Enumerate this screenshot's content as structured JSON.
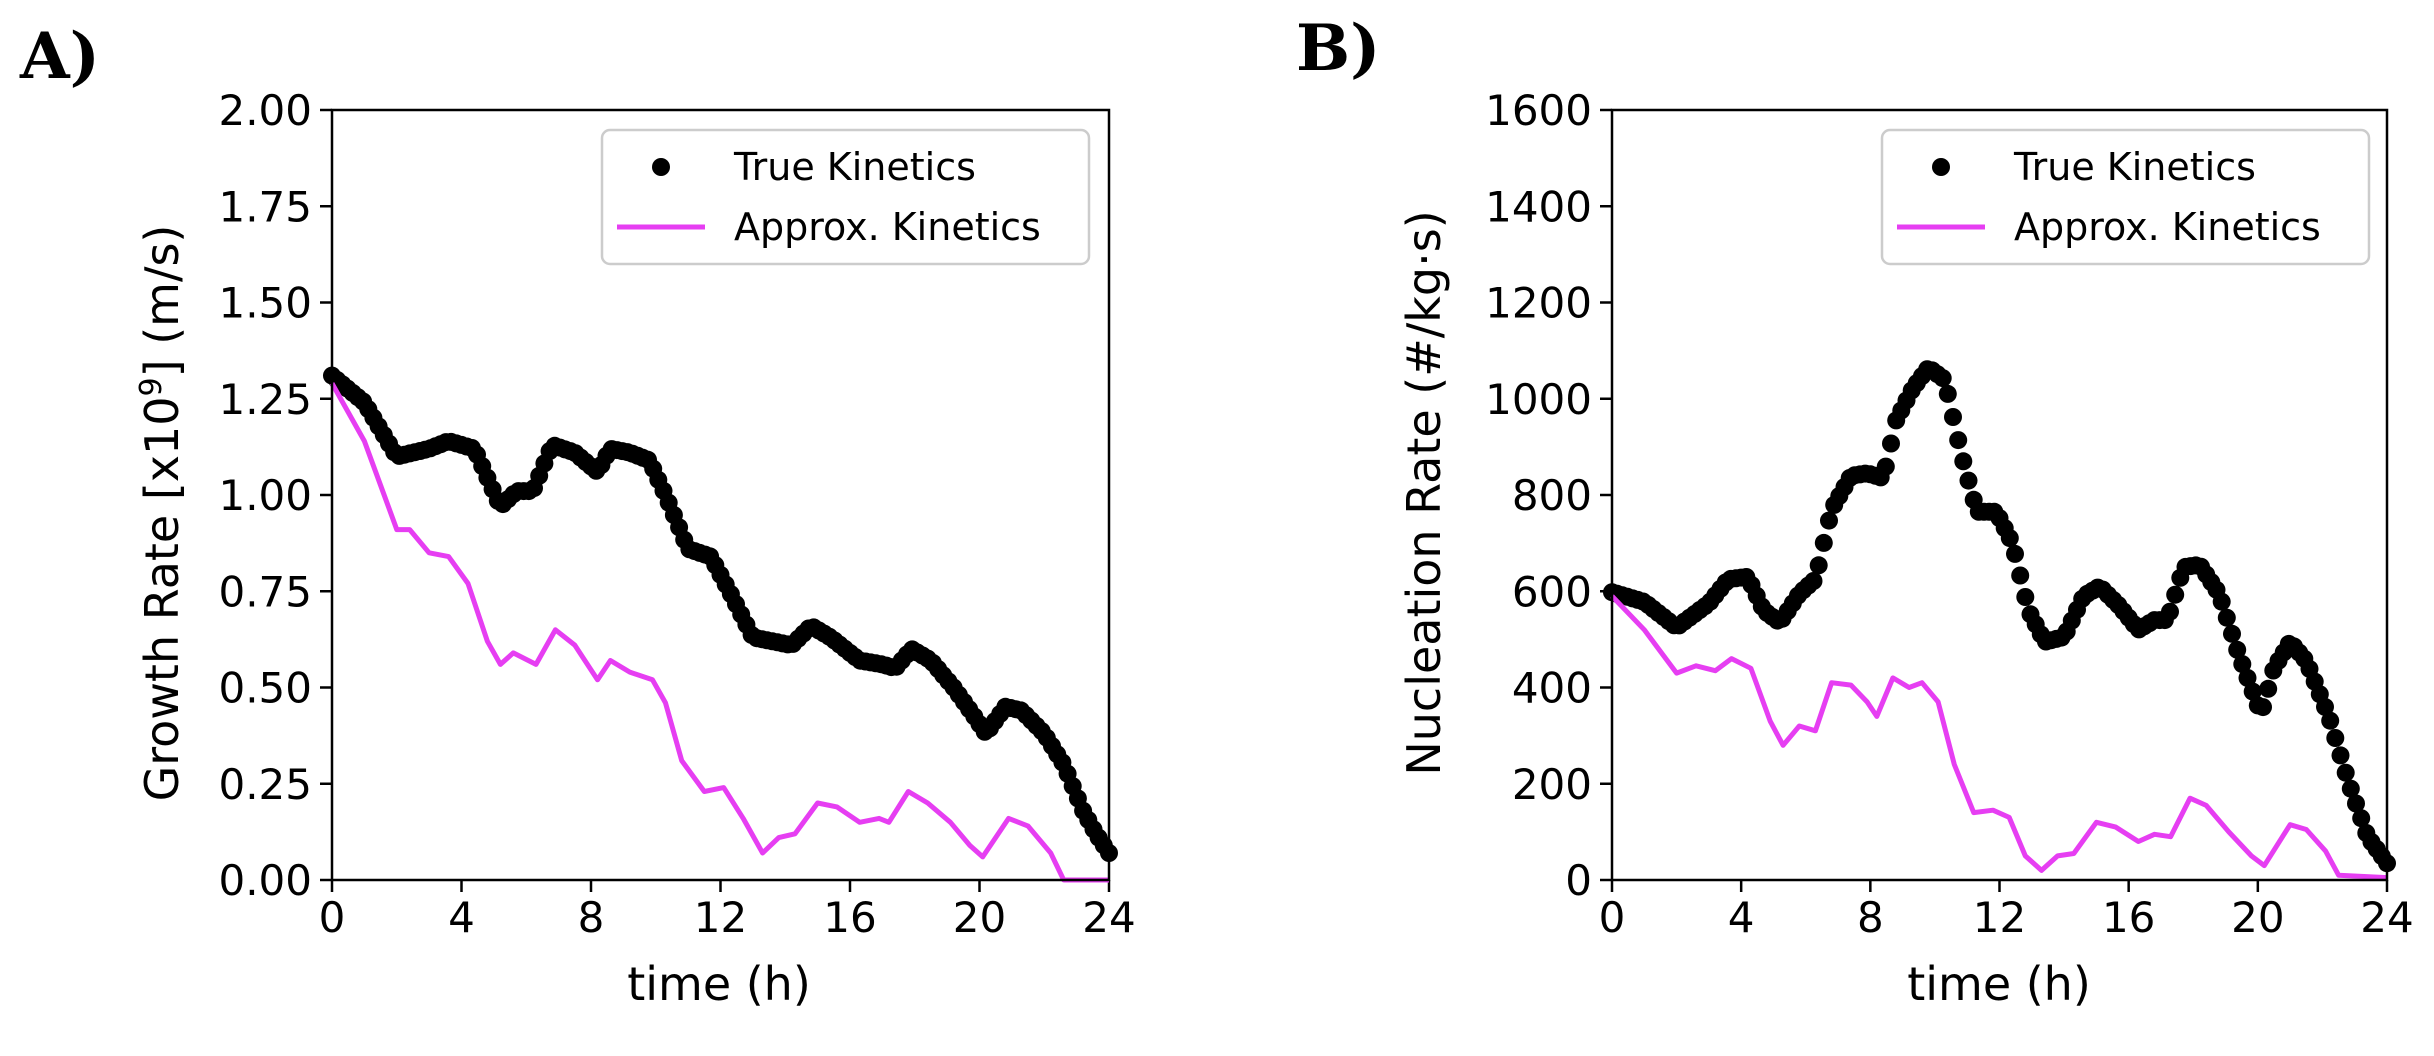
{
  "colors": {
    "true_kinetics": "#000000",
    "approx_kinetics": "#e63ef2",
    "legend_border": "#cccccc"
  },
  "chart_data": [
    {
      "type": "line",
      "panel_label": "A)",
      "xlabel": "time (h)",
      "ylabel_prefix": "Growth Rate [x10",
      "ylabel_sup": "9",
      "ylabel_suffix": "] (m/s)",
      "xlim": [
        0,
        24
      ],
      "ylim": [
        0,
        2
      ],
      "xticks": [
        0,
        4,
        8,
        12,
        16,
        20,
        24
      ],
      "yticks": [
        "0.00",
        "0.25",
        "0.50",
        "0.75",
        "1.00",
        "1.25",
        "1.50",
        "1.75",
        "2.00"
      ],
      "legend": {
        "position": "top-right",
        "entries": [
          "True Kinetics",
          "Approx. Kinetics"
        ]
      },
      "series": [
        {
          "name": "True Kinetics",
          "style": "markers",
          "points": [
            [
              0,
              1.31
            ],
            [
              1,
              1.24
            ],
            [
              2,
              1.1
            ],
            [
              3,
              1.12
            ],
            [
              3.6,
              1.14
            ],
            [
              4.4,
              1.12
            ],
            [
              5.2,
              0.97
            ],
            [
              5.7,
              1.01
            ],
            [
              6.2,
              1.01
            ],
            [
              6.8,
              1.13
            ],
            [
              7.5,
              1.11
            ],
            [
              8.2,
              1.06
            ],
            [
              8.6,
              1.12
            ],
            [
              9.2,
              1.11
            ],
            [
              9.8,
              1.09
            ],
            [
              10.3,
              1.0
            ],
            [
              11,
              0.86
            ],
            [
              11.7,
              0.84
            ],
            [
              12.4,
              0.73
            ],
            [
              13,
              0.63
            ],
            [
              13.6,
              0.62
            ],
            [
              14.2,
              0.61
            ],
            [
              14.8,
              0.66
            ],
            [
              15.4,
              0.63
            ],
            [
              16.3,
              0.57
            ],
            [
              17,
              0.56
            ],
            [
              17.4,
              0.55
            ],
            [
              17.9,
              0.6
            ],
            [
              18.5,
              0.57
            ],
            [
              19.2,
              0.5
            ],
            [
              19.8,
              0.43
            ],
            [
              20.2,
              0.38
            ],
            [
              20.8,
              0.45
            ],
            [
              21.3,
              0.44
            ],
            [
              22,
              0.38
            ],
            [
              22.6,
              0.3
            ],
            [
              23.2,
              0.18
            ],
            [
              23.6,
              0.12
            ],
            [
              24,
              0.07
            ]
          ]
        },
        {
          "name": "Approx. Kinetics",
          "style": "line",
          "points": [
            [
              0,
              1.29
            ],
            [
              1,
              1.14
            ],
            [
              2,
              0.91
            ],
            [
              2.4,
              0.91
            ],
            [
              3,
              0.85
            ],
            [
              3.6,
              0.84
            ],
            [
              4.2,
              0.77
            ],
            [
              4.8,
              0.62
            ],
            [
              5.2,
              0.56
            ],
            [
              5.6,
              0.59
            ],
            [
              6.3,
              0.56
            ],
            [
              6.9,
              0.65
            ],
            [
              7.5,
              0.61
            ],
            [
              8.2,
              0.52
            ],
            [
              8.6,
              0.57
            ],
            [
              9.2,
              0.54
            ],
            [
              9.9,
              0.52
            ],
            [
              10.3,
              0.46
            ],
            [
              10.8,
              0.31
            ],
            [
              11.5,
              0.23
            ],
            [
              12.1,
              0.24
            ],
            [
              12.7,
              0.16
            ],
            [
              13.3,
              0.07
            ],
            [
              13.8,
              0.11
            ],
            [
              14.3,
              0.12
            ],
            [
              15,
              0.2
            ],
            [
              15.6,
              0.19
            ],
            [
              16.3,
              0.15
            ],
            [
              16.9,
              0.16
            ],
            [
              17.2,
              0.15
            ],
            [
              17.8,
              0.23
            ],
            [
              18.4,
              0.2
            ],
            [
              19.1,
              0.15
            ],
            [
              19.7,
              0.09
            ],
            [
              20.1,
              0.06
            ],
            [
              20.9,
              0.16
            ],
            [
              21.5,
              0.14
            ],
            [
              22.2,
              0.07
            ],
            [
              22.6,
              0.0
            ],
            [
              24,
              0.0
            ]
          ]
        }
      ]
    },
    {
      "type": "line",
      "panel_label": "B)",
      "xlabel": "time (h)",
      "ylabel": "Nucleation Rate (#/kg·s)",
      "xlim": [
        0,
        24
      ],
      "ylim": [
        0,
        1600
      ],
      "xticks": [
        0,
        4,
        8,
        12,
        16,
        20,
        24
      ],
      "yticks": [
        "0",
        "200",
        "400",
        "600",
        "800",
        "1000",
        "1200",
        "1400",
        "1600"
      ],
      "legend": {
        "position": "top-right",
        "entries": [
          "True Kinetics",
          "Approx. Kinetics"
        ]
      },
      "series": [
        {
          "name": "True Kinetics",
          "style": "markers",
          "points": [
            [
              0,
              598
            ],
            [
              1,
              578
            ],
            [
              2,
              525
            ],
            [
              2.5,
              550
            ],
            [
              3,
              575
            ],
            [
              3.6,
              625
            ],
            [
              4.2,
              630
            ],
            [
              4.7,
              560
            ],
            [
              5.2,
              535
            ],
            [
              5.8,
              595
            ],
            [
              6.3,
              625
            ],
            [
              6.8,
              770
            ],
            [
              7.4,
              840
            ],
            [
              7.9,
              845
            ],
            [
              8.4,
              835
            ],
            [
              8.8,
              955
            ],
            [
              9.3,
              1020
            ],
            [
              9.8,
              1065
            ],
            [
              10.3,
              1040
            ],
            [
              10.8,
              890
            ],
            [
              11.3,
              765
            ],
            [
              11.9,
              765
            ],
            [
              12.4,
              700
            ],
            [
              12.9,
              560
            ],
            [
              13.4,
              495
            ],
            [
              14,
              505
            ],
            [
              14.6,
              590
            ],
            [
              15.1,
              610
            ],
            [
              15.7,
              570
            ],
            [
              16.3,
              520
            ],
            [
              16.8,
              540
            ],
            [
              17.2,
              540
            ],
            [
              17.7,
              650
            ],
            [
              18.2,
              655
            ],
            [
              18.8,
              595
            ],
            [
              19.4,
              470
            ],
            [
              20.1,
              345
            ],
            [
              20.5,
              440
            ],
            [
              21,
              495
            ],
            [
              21.5,
              455
            ],
            [
              22.2,
              340
            ],
            [
              22.8,
              205
            ],
            [
              23.4,
              90
            ],
            [
              24,
              35
            ]
          ]
        },
        {
          "name": "Approx. Kinetics",
          "style": "line",
          "points": [
            [
              0,
              590
            ],
            [
              1,
              520
            ],
            [
              2,
              430
            ],
            [
              2.6,
              445
            ],
            [
              3.2,
              435
            ],
            [
              3.7,
              460
            ],
            [
              4.3,
              440
            ],
            [
              4.9,
              330
            ],
            [
              5.3,
              280
            ],
            [
              5.8,
              320
            ],
            [
              6.3,
              310
            ],
            [
              6.8,
              410
            ],
            [
              7.4,
              405
            ],
            [
              7.9,
              370
            ],
            [
              8.2,
              340
            ],
            [
              8.7,
              420
            ],
            [
              9.2,
              400
            ],
            [
              9.6,
              410
            ],
            [
              10.1,
              370
            ],
            [
              10.6,
              240
            ],
            [
              11.2,
              140
            ],
            [
              11.8,
              145
            ],
            [
              12.3,
              130
            ],
            [
              12.8,
              50
            ],
            [
              13.3,
              20
            ],
            [
              13.8,
              50
            ],
            [
              14.3,
              55
            ],
            [
              15,
              120
            ],
            [
              15.6,
              110
            ],
            [
              16.3,
              80
            ],
            [
              16.8,
              95
            ],
            [
              17.3,
              90
            ],
            [
              17.9,
              170
            ],
            [
              18.4,
              155
            ],
            [
              19.1,
              100
            ],
            [
              19.8,
              50
            ],
            [
              20.2,
              30
            ],
            [
              21,
              115
            ],
            [
              21.5,
              105
            ],
            [
              22.1,
              60
            ],
            [
              22.5,
              10
            ],
            [
              24,
              5
            ]
          ]
        }
      ]
    }
  ]
}
